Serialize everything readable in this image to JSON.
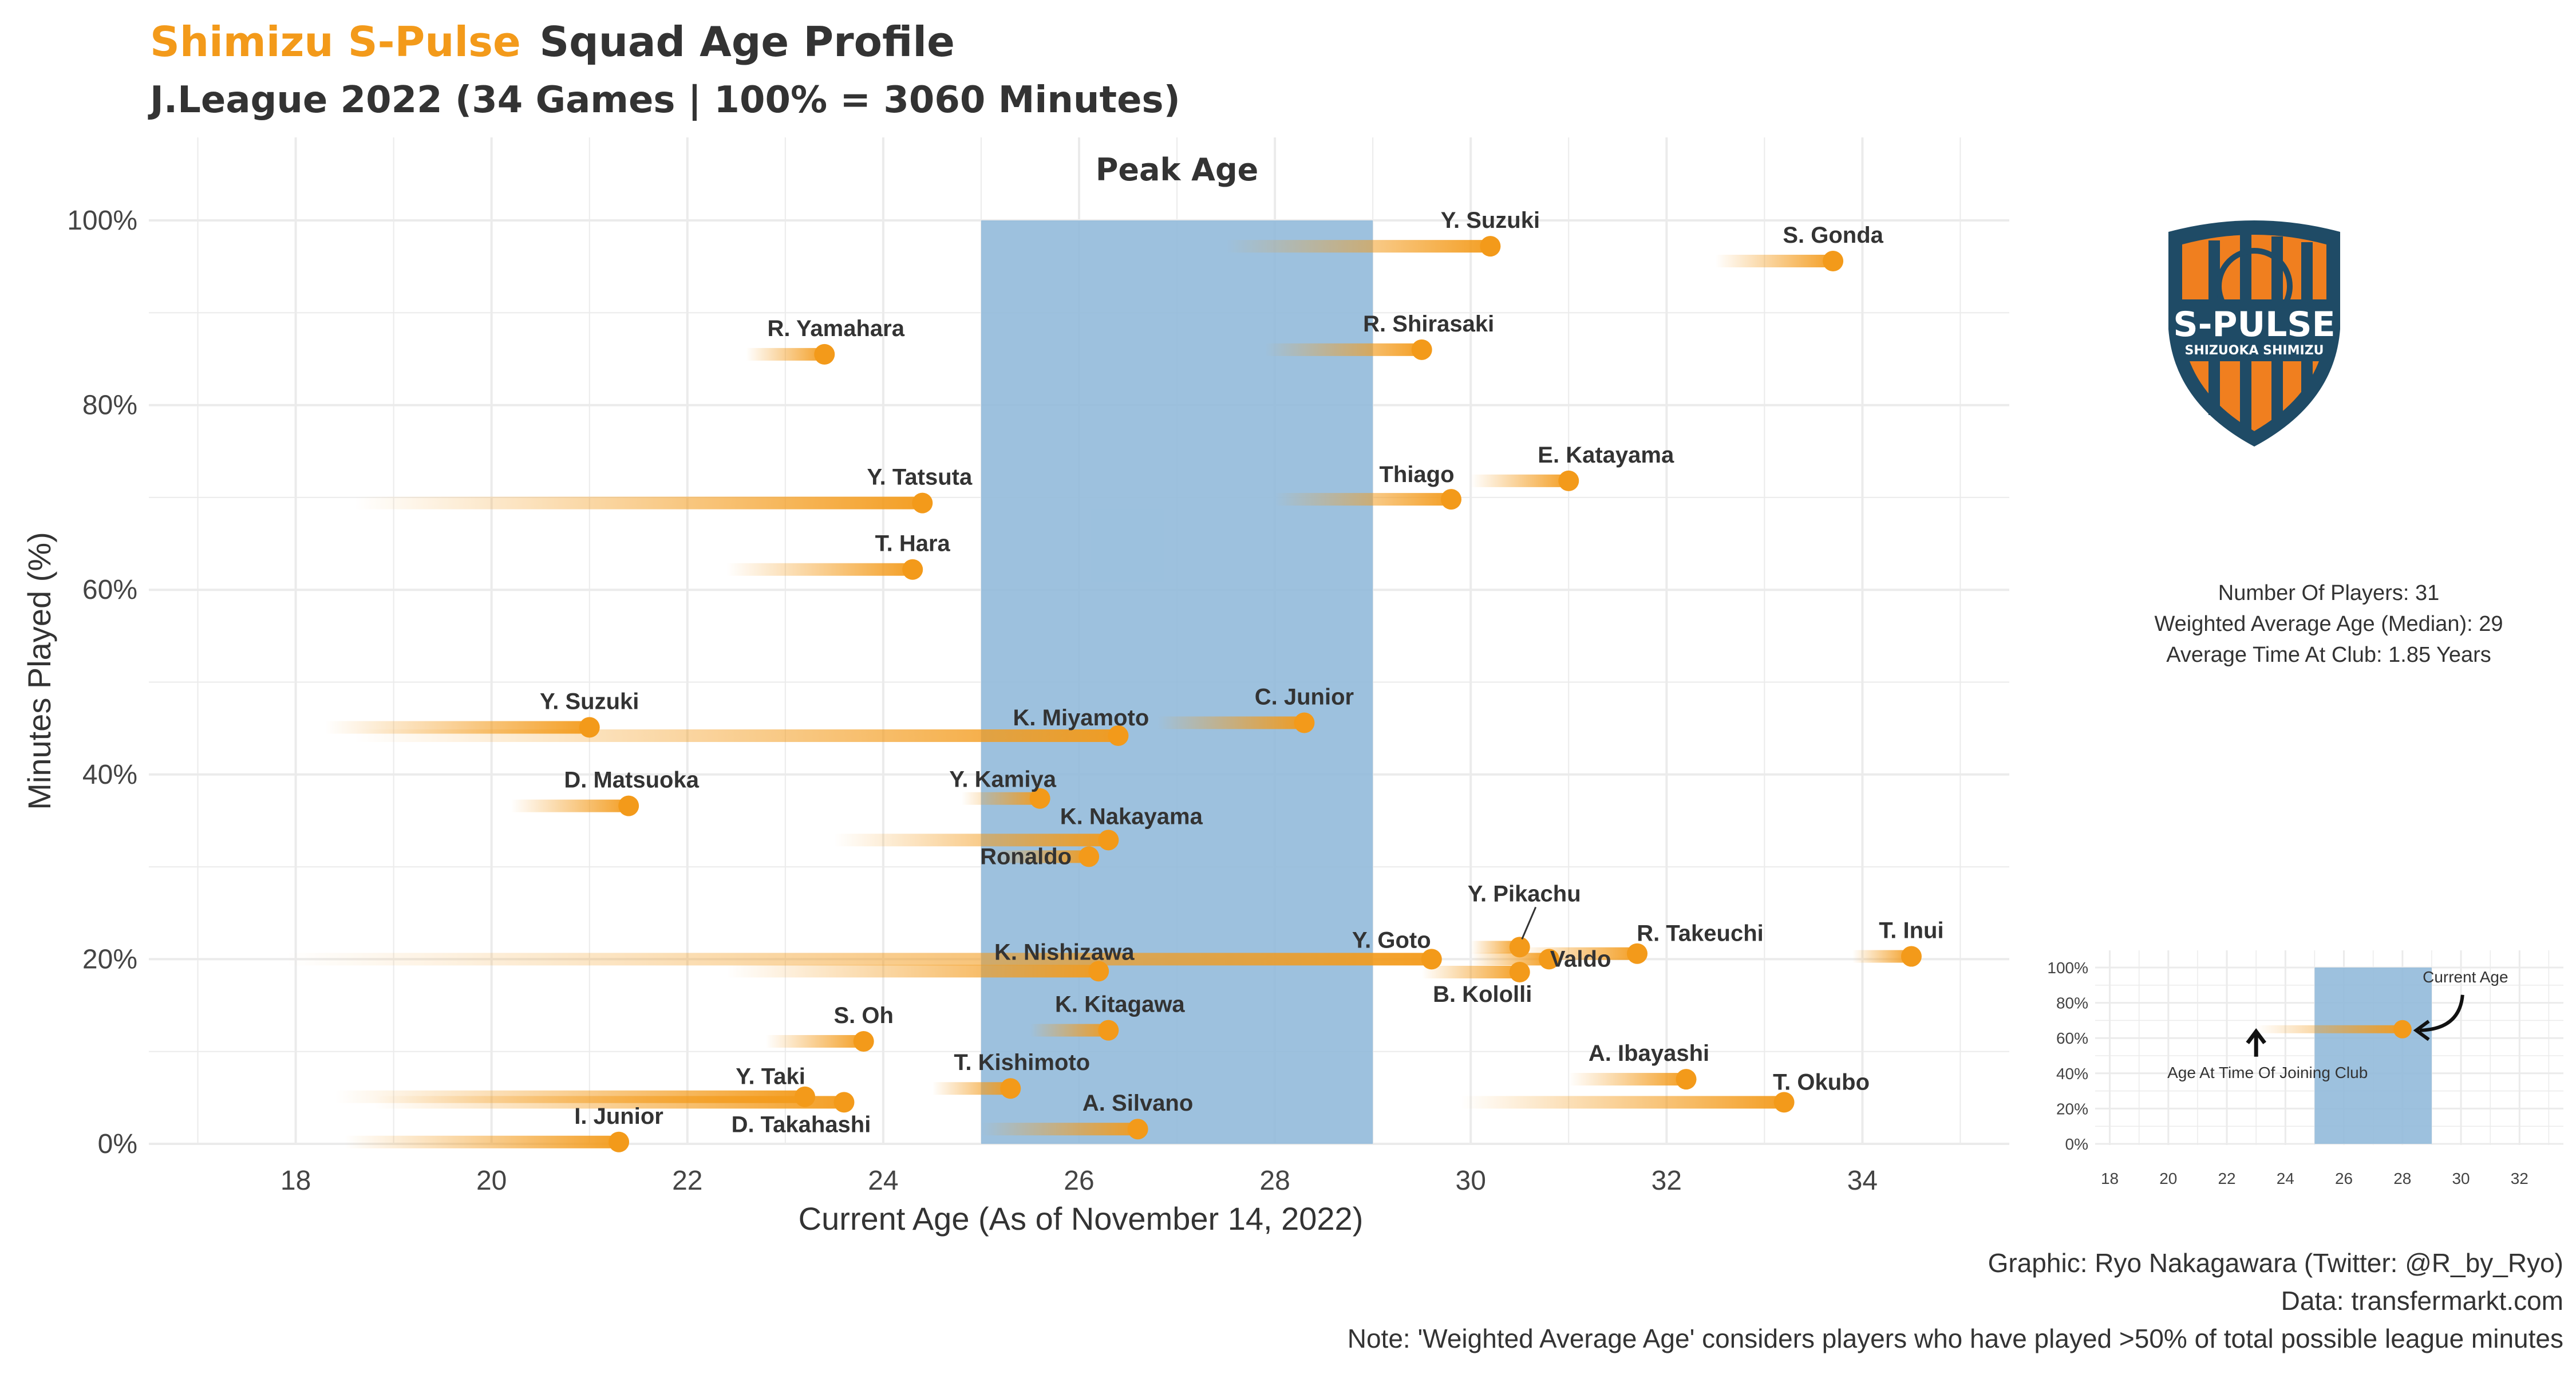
{
  "header": {
    "team": "Shimizu S-Pulse",
    "title": "Squad Age Profile",
    "subtitle": "J.League 2022 (34 Games | 100% = 3060 Minutes)"
  },
  "colors": {
    "accent": "#f39a1a",
    "peak_band": "#8fb8da",
    "grid": "#ebebeb",
    "logo_blue": "#1f4b66",
    "logo_orange": "#f07f1f"
  },
  "logo": {
    "icon": "s-pulse-crest-icon",
    "text_main": "S-PULSE",
    "text_sub": "SHIZUOKA SHIMIZU"
  },
  "stats": {
    "players": "Number Of Players: 31",
    "weighted_age": "Weighted Average Age (Median): 29",
    "avg_time": "Average Time At Club: 1.85 Years"
  },
  "footer": {
    "graphic": "Graphic: Ryo Nakagawara (Twitter: @R_by_Ryo)",
    "data": "Data: transfermarkt.com",
    "note": "Note: 'Weighted Average Age' considers players who have played >50% of total possible league minutes"
  },
  "chart_data": {
    "type": "scatter",
    "xlabel": "Current Age (As of November 14, 2022)",
    "ylabel": "Minutes Played (%)",
    "xlim": [
      16.5,
      35.5
    ],
    "ylim": [
      0,
      100
    ],
    "x_ticks": [
      "18",
      "20",
      "22",
      "24",
      "26",
      "28",
      "30",
      "32",
      "34"
    ],
    "y_ticks": [
      "0%",
      "20%",
      "40%",
      "60%",
      "80%",
      "100%"
    ],
    "peak_age": {
      "label": "Peak Age",
      "from": 25,
      "to": 29
    },
    "players": [
      {
        "name": "Y. Suzuki",
        "age": 30.2,
        "minutes_pct": 97.2,
        "joined_age": 27.5
      },
      {
        "name": "S. Gonda",
        "age": 33.7,
        "minutes_pct": 95.6,
        "joined_age": 32.5
      },
      {
        "name": "R. Yamahara",
        "age": 23.4,
        "minutes_pct": 85.5,
        "joined_age": 22.6
      },
      {
        "name": "R. Shirasaki",
        "age": 29.5,
        "minutes_pct": 86.0,
        "joined_age": 27.9
      },
      {
        "name": "E. Katayama",
        "age": 31.0,
        "minutes_pct": 71.8,
        "joined_age": 30.0
      },
      {
        "name": "Thiago",
        "age": 29.8,
        "minutes_pct": 69.8,
        "joined_age": 28.0
      },
      {
        "name": "Y. Tatsuta",
        "age": 24.4,
        "minutes_pct": 69.4,
        "joined_age": 18.6
      },
      {
        "name": "T. Hara",
        "age": 24.3,
        "minutes_pct": 62.2,
        "joined_age": 22.4
      },
      {
        "name": "Y. Suzuki",
        "age": 21.0,
        "minutes_pct": 45.1,
        "joined_age": 18.3
      },
      {
        "name": "K. Miyamoto",
        "age": 26.4,
        "minutes_pct": 44.2,
        "joined_age": 18.6
      },
      {
        "name": "C. Junior",
        "age": 28.3,
        "minutes_pct": 45.6,
        "joined_age": 26.8
      },
      {
        "name": "D. Matsuoka",
        "age": 21.4,
        "minutes_pct": 36.6,
        "joined_age": 20.2
      },
      {
        "name": "Y. Kamiya",
        "age": 25.6,
        "minutes_pct": 37.4,
        "joined_age": 24.8
      },
      {
        "name": "K. Nakayama",
        "age": 26.3,
        "minutes_pct": 32.9,
        "joined_age": 23.5
      },
      {
        "name": "Ronaldo",
        "age": 26.1,
        "minutes_pct": 31.1,
        "joined_age": 25.1
      },
      {
        "name": "Y. Pikachu",
        "age": 30.5,
        "minutes_pct": 21.3,
        "joined_age": 30.0
      },
      {
        "name": "R. Takeuchi",
        "age": 31.7,
        "minutes_pct": 20.6,
        "joined_age": 30.5
      },
      {
        "name": "T. Inui",
        "age": 34.5,
        "minutes_pct": 20.3,
        "joined_age": 33.9
      },
      {
        "name": "Y. Goto",
        "age": 29.6,
        "minutes_pct": 20.0,
        "joined_age": 17.9
      },
      {
        "name": "Valdo",
        "age": 30.8,
        "minutes_pct": 20.0,
        "joined_age": 30.0
      },
      {
        "name": "K. Nishizawa",
        "age": 26.2,
        "minutes_pct": 18.7,
        "joined_age": 22.4
      },
      {
        "name": "B. Kololli",
        "age": 30.5,
        "minutes_pct": 18.6,
        "joined_age": 29.5
      },
      {
        "name": "S. Oh",
        "age": 23.8,
        "minutes_pct": 11.1,
        "joined_age": 22.8
      },
      {
        "name": "K. Kitagawa",
        "age": 26.3,
        "minutes_pct": 12.3,
        "joined_age": 25.5
      },
      {
        "name": "T. Kishimoto",
        "age": 25.3,
        "minutes_pct": 6.0,
        "joined_age": 24.5
      },
      {
        "name": "A. Ibayashi",
        "age": 32.2,
        "minutes_pct": 7.0,
        "joined_age": 31.0
      },
      {
        "name": "T. Okubo",
        "age": 33.2,
        "minutes_pct": 4.5,
        "joined_age": 29.9
      },
      {
        "name": "Y. Taki",
        "age": 23.2,
        "minutes_pct": 5.1,
        "joined_age": 18.4
      },
      {
        "name": "D. Takahashi",
        "age": 23.6,
        "minutes_pct": 4.5,
        "joined_age": 18.8
      },
      {
        "name": "A. Silvano",
        "age": 26.6,
        "minutes_pct": 1.6,
        "joined_age": 25.0
      },
      {
        "name": "I. Junior",
        "age": 21.3,
        "minutes_pct": 0.2,
        "joined_age": 18.5
      }
    ],
    "legend_inset": {
      "x_ticks": [
        "18",
        "20",
        "22",
        "24",
        "26",
        "28",
        "30",
        "32"
      ],
      "y_ticks": [
        "0%",
        "20%",
        "40%",
        "60%",
        "80%",
        "100%"
      ],
      "xlim": [
        17.5,
        33.5
      ],
      "ylim": [
        0,
        100
      ],
      "peak_age": {
        "from": 25,
        "to": 29
      },
      "example": {
        "joined_age": 23,
        "current_age": 28,
        "minutes_pct": 65
      },
      "current_age_label": "Current Age",
      "joined_label": "Age At Time Of Joining Club"
    }
  }
}
